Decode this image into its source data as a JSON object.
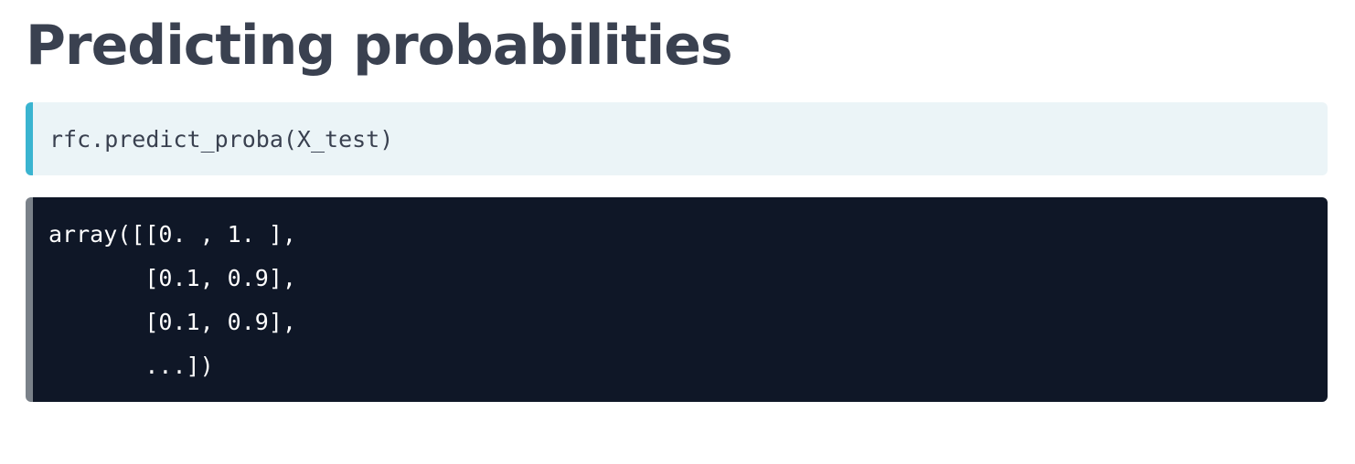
{
  "title": "Predicting probabilities",
  "code_input": "rfc.predict_proba(X_test)",
  "code_output": [
    "array([[0. , 1. ],",
    "       [0.1, 0.9],",
    "       [0.1, 0.9],",
    "       ...])"
  ],
  "colors": {
    "title": "#3a4150",
    "input_background": "#ebf4f7",
    "input_accent": "#3ab4d0",
    "output_background": "#0f1727",
    "output_accent": "#7a8189",
    "output_text": "#ffffff"
  }
}
